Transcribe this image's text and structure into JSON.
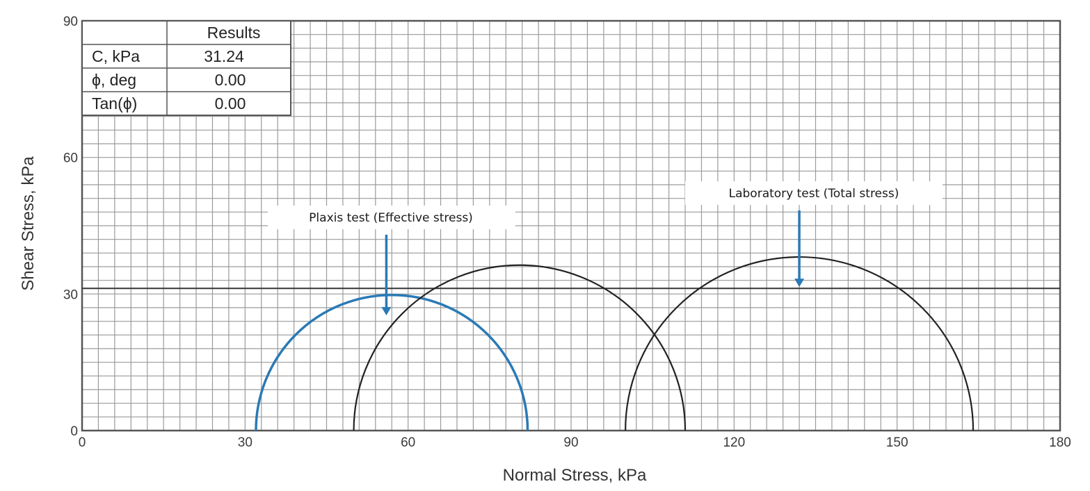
{
  "chart_data": {
    "type": "line",
    "xlabel": "Normal Stress, kPa",
    "ylabel": "Shear Stress, kPa",
    "xlim": [
      0,
      180
    ],
    "ylim": [
      0,
      90
    ],
    "x_ticks": [
      0,
      30,
      60,
      90,
      120,
      150,
      180
    ],
    "y_ticks": [
      0,
      30,
      60,
      90
    ],
    "grid": true,
    "envelope": {
      "c": 31.24,
      "phi_deg": 0.0
    },
    "circles": [
      {
        "sigma3": 32,
        "sigma1": 82,
        "color": "#2a7ab5"
      },
      {
        "sigma3": 50,
        "sigma1": 111,
        "color": "#222222"
      },
      {
        "sigma3": 100,
        "sigma1": 164,
        "color": "#222222"
      }
    ],
    "results_table": {
      "header": "Results",
      "rows": [
        {
          "label": "C, kPa",
          "value": "31.24"
        },
        {
          "label": "ϕ, deg",
          "value": "0.00"
        },
        {
          "label": "Tan(ϕ)",
          "value": "0.00"
        }
      ]
    },
    "annotations": [
      {
        "text": "Plaxis test (Effective stress)",
        "target_x": 56,
        "target_y": 25
      },
      {
        "text": "Laboratory test (Total stress)",
        "target_x": 132,
        "target_y": 31.24
      }
    ]
  },
  "colors": {
    "grid": "#9a9a9a",
    "frame": "#555555",
    "arrow": "#2a7ab5"
  }
}
